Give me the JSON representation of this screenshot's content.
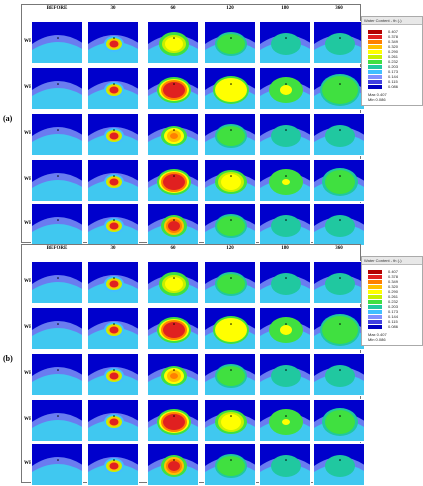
{
  "panels": [
    {
      "label": "(a)"
    },
    {
      "label": "(b)"
    }
  ],
  "columns": [
    "BEFORE",
    "30",
    "60",
    "120",
    "180",
    "360"
  ],
  "rows": [
    "WF1C",
    "WF2C",
    "WF3C",
    "WF4C",
    "WF5C"
  ],
  "legend": {
    "title": "Water Content - th (-)",
    "levels": [
      "0.407",
      "0.378",
      "0.349",
      "0.320",
      "0.290",
      "0.261",
      "0.232",
      "0.203",
      "0.173",
      "0.144",
      "0.115",
      "0.086"
    ],
    "colors": [
      "#b30000",
      "#e02020",
      "#ff8000",
      "#ffc000",
      "#ffff00",
      "#c8f000",
      "#40e040",
      "#20c8a0",
      "#40c0ff",
      "#8090ff",
      "#4040e0",
      "#0000c0"
    ],
    "max_label": "Max",
    "max_value": "0.407",
    "min_label": "Min",
    "min_value": "0.086"
  },
  "colors": {
    "background_deep": "#0000cc",
    "soil_outer": "#6a7cf0",
    "soil_inner": "#40c8f0"
  },
  "cells": {
    "a": [
      [
        "none",
        "small-red",
        "yellow-green",
        "green-light",
        "cyan-light",
        "cyan-light"
      ],
      [
        "none",
        "small-red",
        "big-red",
        "yellow-large",
        "yellow-small",
        "green-large"
      ],
      [
        "none",
        "small-red",
        "yellow-orange",
        "green-light",
        "cyan-light",
        "cyan-light"
      ],
      [
        "none",
        "small-red",
        "big-red",
        "yellow-med",
        "green-core",
        "green-soft"
      ],
      [
        "none",
        "small-red",
        "orange-med",
        "green-light",
        "cyan-light",
        "cyan-light"
      ]
    ],
    "b": [
      [
        "none",
        "small-red",
        "yellow-green",
        "green-light",
        "cyan-light",
        "cyan-light"
      ],
      [
        "none",
        "small-red",
        "big-red",
        "yellow-large",
        "yellow-small",
        "green-large"
      ],
      [
        "none",
        "small-red",
        "yellow-orange",
        "green-light",
        "cyan-light",
        "cyan-light"
      ],
      [
        "none",
        "small-red",
        "big-red",
        "yellow-med",
        "green-core",
        "green-soft"
      ],
      [
        "none",
        "small-red",
        "orange-med",
        "green-light",
        "cyan-light",
        "cyan-light"
      ]
    ]
  }
}
